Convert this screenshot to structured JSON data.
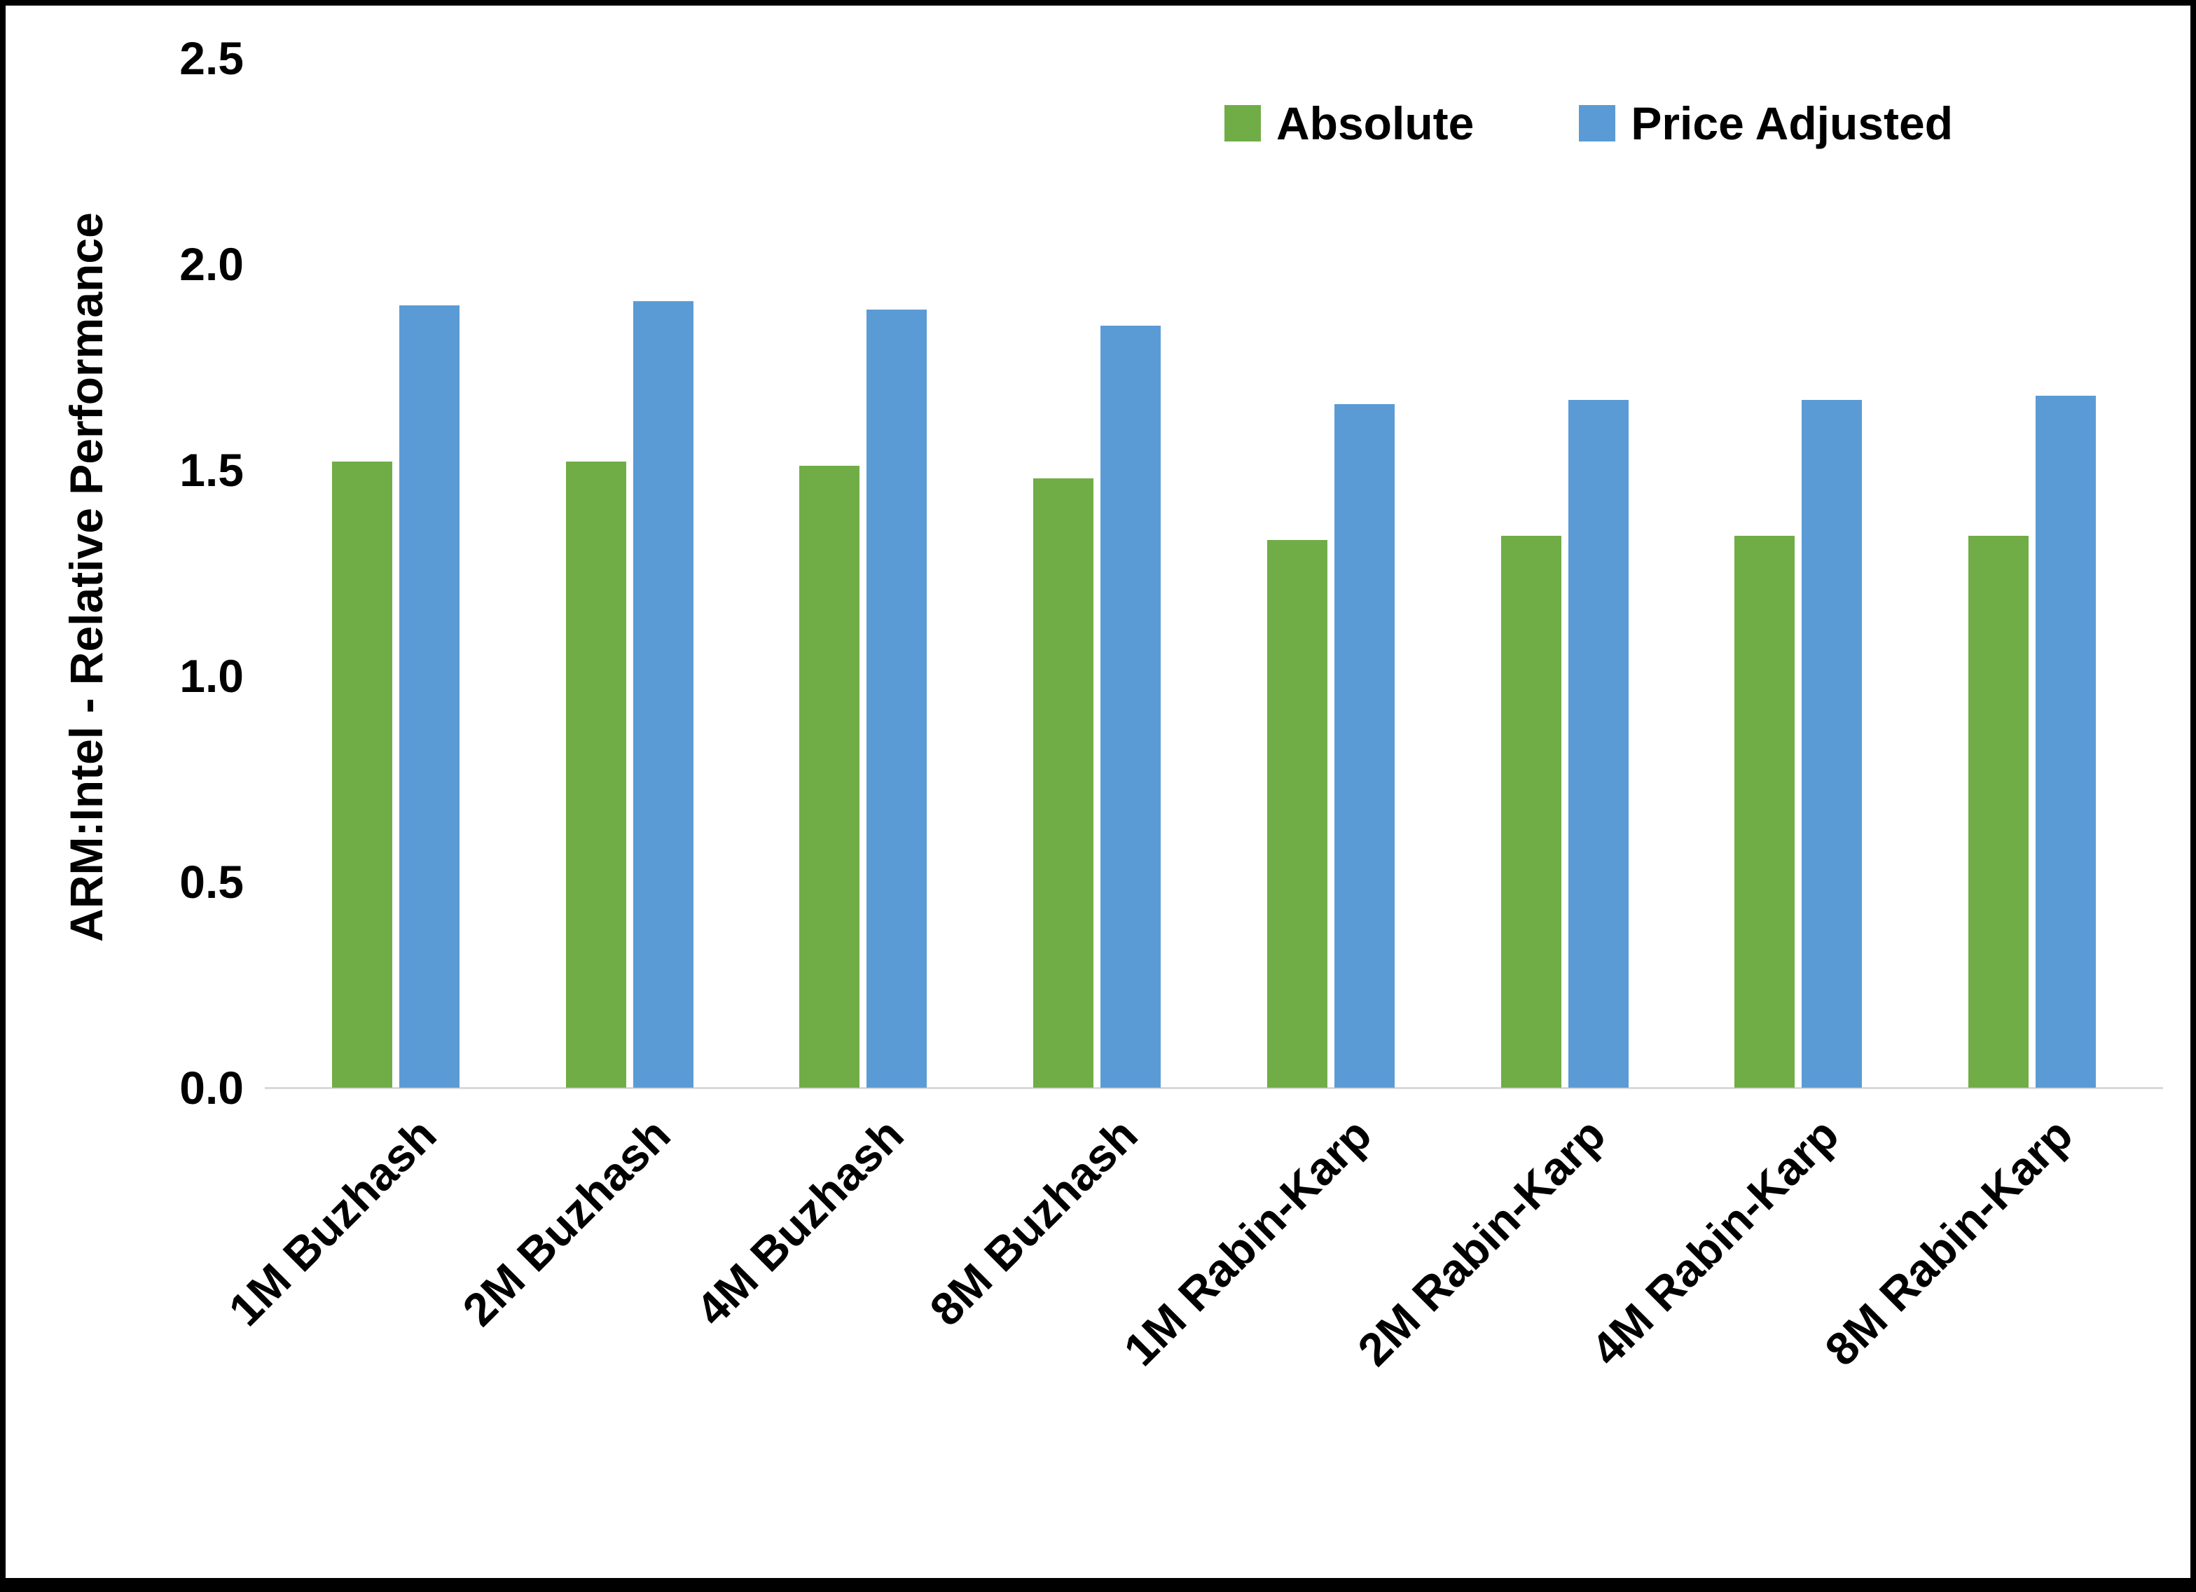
{
  "chart_data": {
    "type": "bar",
    "title": "",
    "xlabel": "",
    "ylabel": "ARM:Intel - Relative Performance",
    "ylim": [
      0,
      2.5
    ],
    "yticks": [
      0.0,
      0.5,
      1.0,
      1.5,
      2.0,
      2.5
    ],
    "ytick_labels": [
      "0.0",
      "0.5",
      "1.0",
      "1.5",
      "2.0",
      "2.5"
    ],
    "grid": false,
    "legend_position": "top-right",
    "categories": [
      "1M Buzhash",
      "2M Buzhash",
      "4M Buzhash",
      "8M Buzhash",
      "1M Rabin-Karp",
      "2M Rabin-Karp",
      "4M Rabin-Karp",
      "8M Rabin-Karp"
    ],
    "series": [
      {
        "name": "Absolute",
        "color": "#70AD47",
        "values": [
          1.52,
          1.52,
          1.51,
          1.48,
          1.33,
          1.34,
          1.34,
          1.34
        ]
      },
      {
        "name": "Price Adjusted",
        "color": "#5B9BD5",
        "values": [
          1.9,
          1.91,
          1.89,
          1.85,
          1.66,
          1.67,
          1.67,
          1.68
        ]
      }
    ]
  },
  "colors": {
    "background": "#ffffff",
    "border": "#000000",
    "axis_line": "#d9d9d9",
    "text": "#000000",
    "series_absolute": "#70AD47",
    "series_price_adjusted": "#5B9BD5"
  }
}
